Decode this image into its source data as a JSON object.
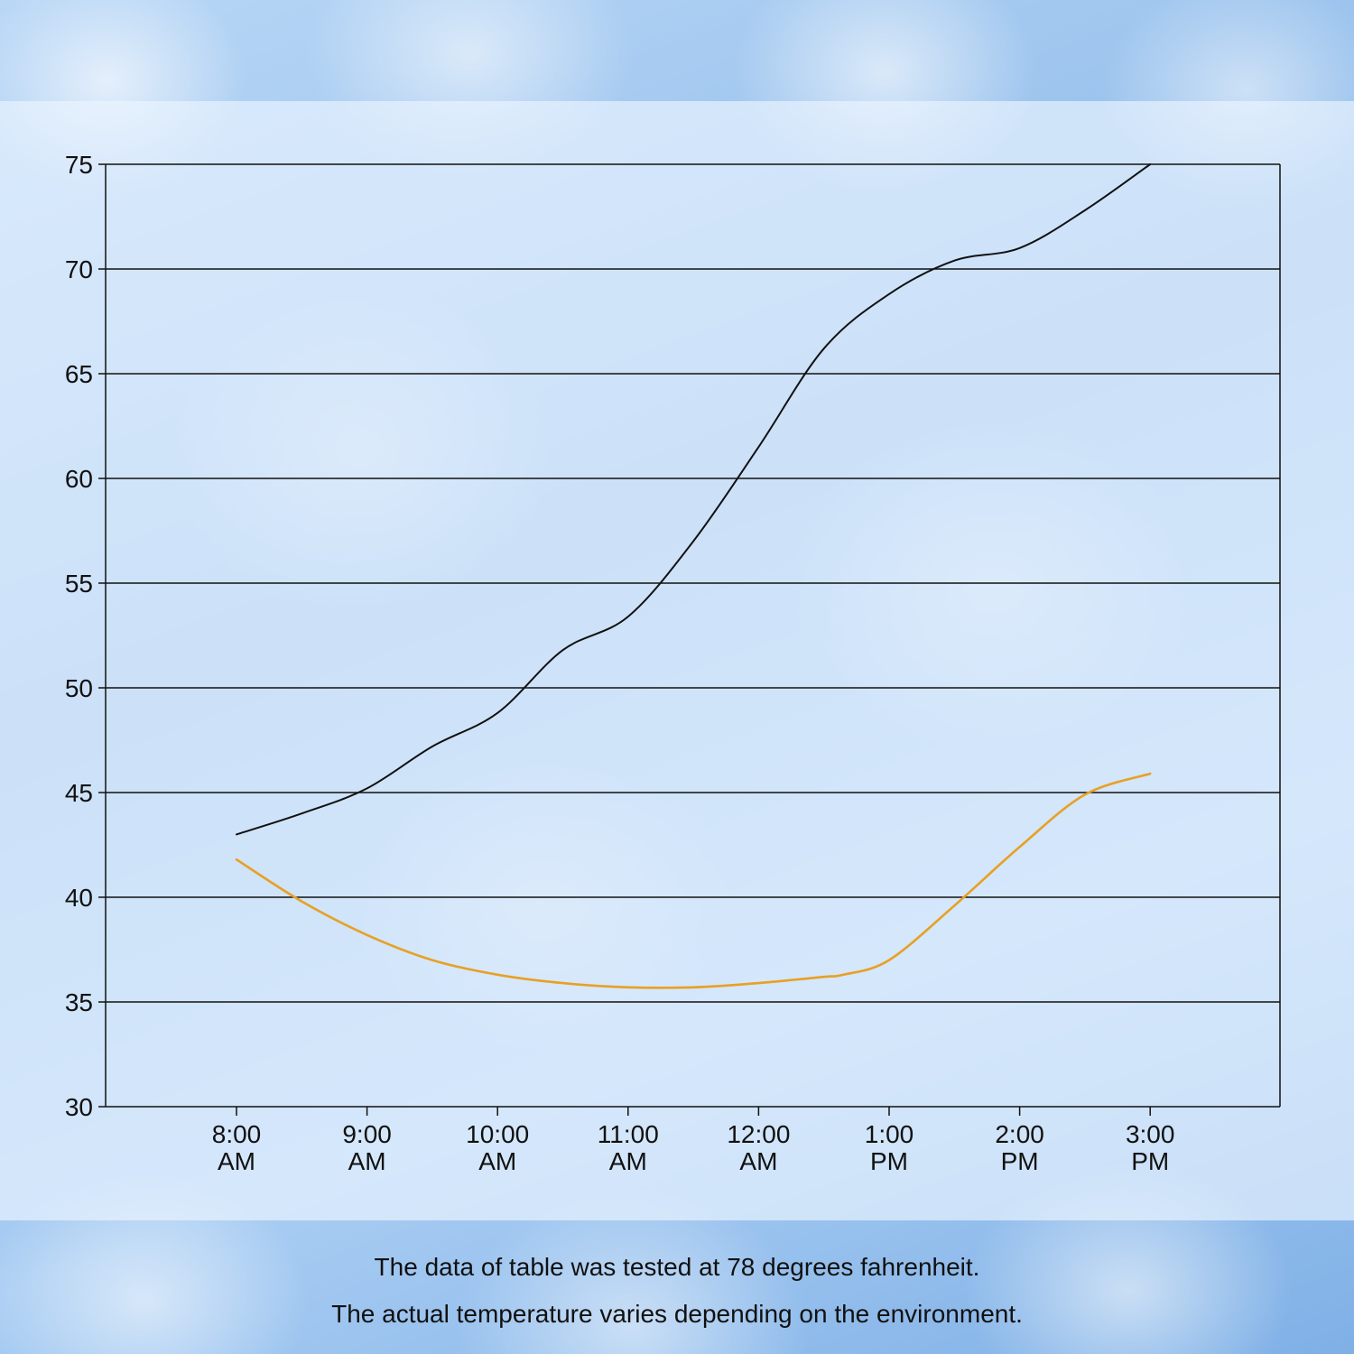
{
  "chart_data": {
    "type": "line",
    "title": "",
    "xlabel": "",
    "ylabel": "",
    "categories": [
      [
        "8:00",
        "AM"
      ],
      [
        "9:00",
        "AM"
      ],
      [
        "10:00",
        "AM"
      ],
      [
        "11:00",
        "AM"
      ],
      [
        "12:00",
        "AM"
      ],
      [
        "1:00",
        "PM"
      ],
      [
        "2:00",
        "PM"
      ],
      [
        "3:00",
        "PM"
      ]
    ],
    "yticks": [
      "30",
      "35",
      "40",
      "45",
      "50",
      "55",
      "60",
      "65",
      "70",
      "75"
    ],
    "ylim": [
      30,
      75
    ],
    "grid": true,
    "legend": "none",
    "series": [
      {
        "color": "#111111",
        "x": [
          0,
          0.5,
          1,
          1.5,
          2,
          2.5,
          3,
          3.5,
          4,
          4.5,
          5,
          5.5,
          6,
          6.5,
          7
        ],
        "values": [
          43.0,
          44.0,
          45.2,
          47.2,
          48.8,
          51.8,
          53.4,
          57.0,
          61.5,
          66.2,
          68.8,
          70.4,
          71.0,
          72.8,
          75.0
        ]
      },
      {
        "color": "#E8A023",
        "x": [
          0,
          0.5,
          1,
          1.5,
          2,
          2.5,
          3,
          3.5,
          4,
          4.5,
          4.65,
          5,
          5.5,
          6,
          6.5,
          7
        ],
        "values": [
          41.8,
          39.8,
          38.2,
          37.0,
          36.3,
          35.9,
          35.7,
          35.7,
          35.9,
          36.2,
          36.3,
          37.0,
          39.6,
          42.4,
          44.9,
          45.9
        ]
      }
    ]
  },
  "captions": {
    "line1": "The data of table was tested at 78 degrees fahrenheit.",
    "line2": "The actual temperature varies depending on the environment."
  },
  "colors": {
    "grid": "#111111",
    "panel": "#ECF4FF"
  }
}
